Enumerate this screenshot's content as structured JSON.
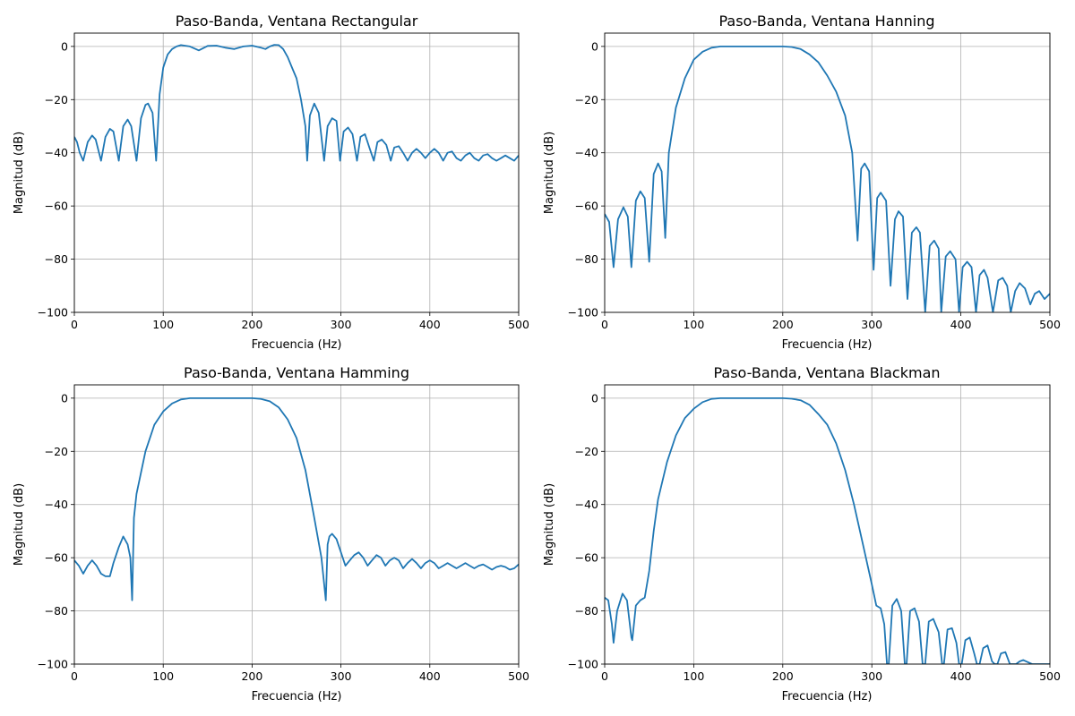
{
  "figure": {
    "line_color": "#1f77b4",
    "grid_color": "#b0b0b0"
  },
  "chart_data": [
    {
      "type": "line",
      "title": "Paso-Banda, Ventana Rectangular",
      "xlabel": "Frecuencia (Hz)",
      "ylabel": "Magnitud (dB)",
      "xlim": [
        0,
        500
      ],
      "ylim": [
        -100,
        5
      ],
      "xticks": [
        "0",
        "100",
        "200",
        "300",
        "400",
        "500"
      ],
      "yticks": [
        "0",
        "−20",
        "−40",
        "−60",
        "−80",
        "−100"
      ],
      "grid": true,
      "series": [
        {
          "x": [
            0,
            3,
            6,
            10,
            15,
            20,
            24,
            30,
            35,
            40,
            44,
            50,
            55,
            60,
            64,
            70,
            75,
            80,
            83,
            88,
            92,
            96,
            100,
            105,
            110,
            115,
            120,
            130,
            140,
            150,
            160,
            170,
            180,
            190,
            200,
            210,
            215,
            220,
            225,
            230,
            235,
            240,
            245,
            250,
            255,
            260,
            262,
            265,
            270,
            275,
            281,
            285,
            290,
            295,
            299,
            303,
            308,
            313,
            318,
            322,
            327,
            332,
            337,
            341,
            346,
            351,
            356,
            360,
            365,
            370,
            375,
            380,
            385,
            390,
            395,
            400,
            405,
            410,
            415,
            420,
            425,
            430,
            435,
            440,
            445,
            450,
            455,
            460,
            465,
            470,
            475,
            480,
            485,
            490,
            495,
            500
          ],
          "y": [
            -34,
            -36,
            -40,
            -43,
            -36,
            -33.5,
            -35,
            -43,
            -34,
            -31,
            -32,
            -43,
            -30,
            -27.5,
            -30,
            -43,
            -27,
            -22,
            -21.5,
            -25,
            -43,
            -18,
            -8,
            -3,
            -1,
            0,
            0.5,
            0,
            -1.5,
            0.2,
            0.3,
            -0.5,
            -1,
            0,
            0.3,
            -0.5,
            -1,
            0,
            0.6,
            0.5,
            -1,
            -4,
            -8,
            -12,
            -20,
            -30,
            -43,
            -26,
            -21.5,
            -25,
            -43,
            -30,
            -27,
            -28,
            -43,
            -32,
            -30.5,
            -33,
            -43,
            -34,
            -33,
            -38,
            -43,
            -36,
            -35,
            -37,
            -43,
            -38,
            -37.5,
            -40,
            -43,
            -40,
            -38.5,
            -40,
            -42,
            -40,
            -38.5,
            -40,
            -43,
            -40,
            -39.5,
            -42,
            -43,
            -41,
            -40,
            -42,
            -43,
            -41,
            -40.5,
            -42,
            -43,
            -42,
            -41,
            -42,
            -43,
            -41
          ]
        }
      ]
    },
    {
      "type": "line",
      "title": "Paso-Banda, Ventana Hanning",
      "xlabel": "Frecuencia (Hz)",
      "ylabel": "Magnitud (dB)",
      "xlim": [
        0,
        500
      ],
      "ylim": [
        -100,
        5
      ],
      "xticks": [
        "0",
        "100",
        "200",
        "300",
        "400",
        "500"
      ],
      "yticks": [
        "0",
        "−20",
        "−40",
        "−60",
        "−80",
        "−100"
      ],
      "grid": true,
      "series": [
        {
          "x": [
            0,
            5,
            10,
            15,
            21,
            26,
            30,
            35,
            40,
            45,
            50,
            55,
            60,
            64,
            68,
            72,
            80,
            90,
            100,
            110,
            120,
            130,
            140,
            160,
            180,
            200,
            210,
            220,
            230,
            240,
            250,
            260,
            270,
            278,
            284,
            288,
            292,
            297,
            302,
            306,
            310,
            316,
            321,
            326,
            330,
            335,
            340,
            345,
            350,
            354,
            360,
            365,
            370,
            375,
            378,
            383,
            388,
            394,
            398,
            402,
            407,
            412,
            417,
            421,
            426,
            430,
            436,
            442,
            447,
            452,
            456,
            461,
            466,
            472,
            478,
            483,
            488,
            494,
            500
          ],
          "y": [
            -63,
            -66,
            -83,
            -65,
            -60.5,
            -64,
            -83,
            -58,
            -54.5,
            -57,
            -81,
            -48,
            -44,
            -47,
            -72,
            -40,
            -23,
            -12,
            -5,
            -2,
            -0.5,
            0,
            0,
            0,
            0,
            0,
            -0.2,
            -1,
            -3,
            -6,
            -11,
            -17,
            -26,
            -40,
            -73,
            -46,
            -44,
            -47,
            -84,
            -57,
            -55,
            -58,
            -90,
            -65,
            -62,
            -64,
            -95,
            -70,
            -68,
            -70,
            -100,
            -75,
            -73,
            -76,
            -100,
            -79,
            -77,
            -80,
            -100,
            -83,
            -81,
            -83,
            -100,
            -86,
            -84,
            -87,
            -100,
            -88,
            -87,
            -90,
            -100,
            -92,
            -89,
            -91,
            -97,
            -93,
            -92,
            -95,
            -93
          ]
        }
      ]
    },
    {
      "type": "line",
      "title": "Paso-Banda, Ventana Hamming",
      "xlabel": "Frecuencia (Hz)",
      "ylabel": "Magnitud (dB)",
      "xlim": [
        0,
        500
      ],
      "ylim": [
        -100,
        5
      ],
      "xticks": [
        "0",
        "100",
        "200",
        "300",
        "400",
        "500"
      ],
      "yticks": [
        "0",
        "−20",
        "−40",
        "−60",
        "−80",
        "−100"
      ],
      "grid": true,
      "series": [
        {
          "x": [
            0,
            5,
            10,
            15,
            20,
            25,
            30,
            35,
            40,
            44,
            50,
            55,
            60,
            63,
            65,
            67,
            70,
            80,
            90,
            100,
            110,
            120,
            130,
            140,
            160,
            180,
            200,
            210,
            220,
            230,
            240,
            250,
            260,
            270,
            278,
            283,
            285,
            287,
            290,
            295,
            300,
            305,
            310,
            315,
            320,
            325,
            330,
            335,
            340,
            345,
            350,
            355,
            360,
            365,
            370,
            375,
            380,
            385,
            390,
            395,
            400,
            405,
            410,
            415,
            420,
            425,
            430,
            435,
            440,
            445,
            450,
            455,
            460,
            465,
            470,
            475,
            480,
            485,
            490,
            495,
            500
          ],
          "y": [
            -61,
            -63,
            -66,
            -63,
            -61,
            -63,
            -66,
            -67,
            -67,
            -62,
            -56,
            -52,
            -55,
            -60,
            -76,
            -45,
            -36,
            -20,
            -10,
            -5,
            -2,
            -0.5,
            0,
            0,
            0,
            0,
            0,
            -0.3,
            -1.2,
            -3.5,
            -8,
            -15,
            -27,
            -45,
            -60,
            -76,
            -55,
            -52,
            -51,
            -53,
            -58,
            -63,
            -61,
            -59,
            -58,
            -60,
            -63,
            -61,
            -59,
            -60,
            -63,
            -61,
            -60,
            -61,
            -64,
            -62,
            -60.5,
            -62,
            -64,
            -62,
            -61,
            -62,
            -64,
            -63,
            -62,
            -63,
            -64,
            -63,
            -62,
            -63,
            -64,
            -63,
            -62.5,
            -63.5,
            -64.5,
            -63.5,
            -63,
            -63.5,
            -64.5,
            -64,
            -62.5
          ]
        }
      ]
    },
    {
      "type": "line",
      "title": "Paso-Banda, Ventana Blackman",
      "xlabel": "Frecuencia (Hz)",
      "ylabel": "Magnitud (dB)",
      "xlim": [
        0,
        500
      ],
      "ylim": [
        -100,
        5
      ],
      "xticks": [
        "0",
        "100",
        "200",
        "300",
        "400",
        "500"
      ],
      "yticks": [
        "0",
        "−20",
        "−40",
        "−60",
        "−80",
        "−100"
      ],
      "grid": true,
      "series": [
        {
          "x": [
            0,
            4,
            8,
            10,
            14,
            20,
            25,
            30,
            31,
            35,
            40,
            45,
            50,
            55,
            60,
            70,
            80,
            90,
            100,
            110,
            120,
            130,
            140,
            160,
            180,
            200,
            210,
            220,
            230,
            240,
            250,
            260,
            270,
            280,
            290,
            300,
            305,
            310,
            314,
            317,
            319,
            323,
            328,
            333,
            337,
            339,
            343,
            348,
            353,
            357,
            360,
            364,
            369,
            375,
            379,
            381,
            385,
            390,
            395,
            398,
            401,
            405,
            410,
            415,
            418,
            421,
            425,
            430,
            435,
            438,
            441,
            445,
            450,
            455,
            459,
            462,
            466,
            470,
            480,
            490,
            500
          ],
          "y": [
            -75,
            -76,
            -85,
            -92,
            -80,
            -73.5,
            -76,
            -90,
            -91,
            -78,
            -76,
            -75,
            -65,
            -50,
            -38,
            -24,
            -14,
            -7.5,
            -4,
            -1.5,
            -0.3,
            0,
            0,
            0,
            0,
            0,
            -0.2,
            -0.8,
            -2.5,
            -6,
            -10,
            -17,
            -27,
            -40,
            -55,
            -70,
            -78,
            -79,
            -85,
            -100,
            -100,
            -78,
            -75.5,
            -80,
            -100,
            -100,
            -80,
            -79,
            -84,
            -100,
            -100,
            -84,
            -83,
            -88,
            -100,
            -100,
            -87,
            -86.5,
            -92,
            -100,
            -100,
            -91,
            -90,
            -96,
            -100,
            -100,
            -94,
            -93,
            -99,
            -100,
            -100,
            -96,
            -95.5,
            -100,
            -100,
            -100,
            -99,
            -98.5,
            -100,
            -100,
            -100
          ]
        }
      ]
    }
  ]
}
